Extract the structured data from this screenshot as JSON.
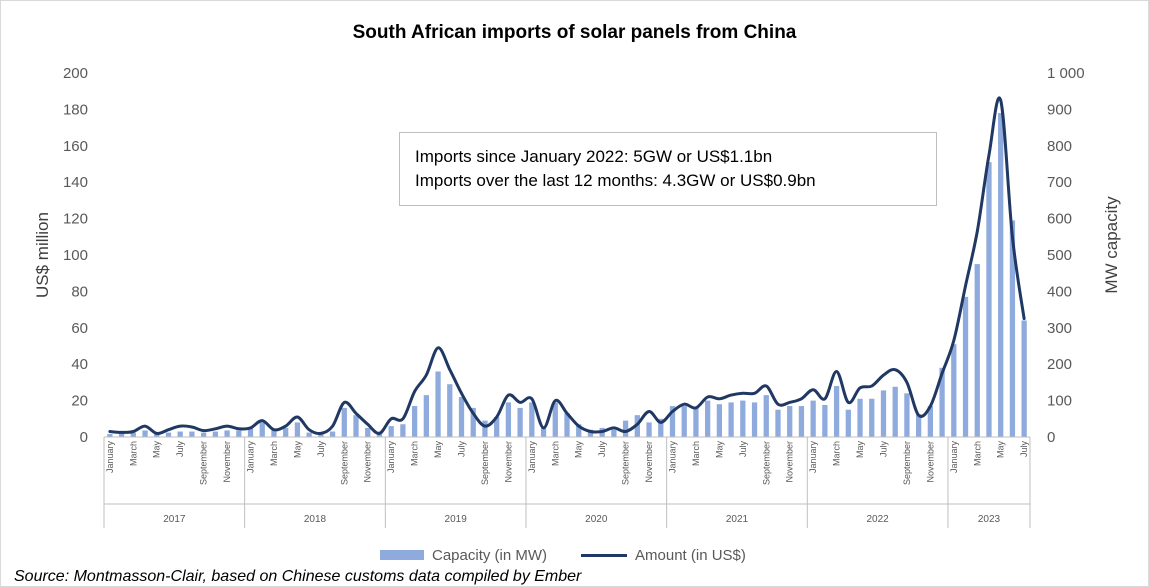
{
  "chart_data": {
    "type": "bar",
    "title": "South African imports of solar panels from China",
    "ylabel": "US$ million",
    "y2label": "MW capacity",
    "ylim": [
      0,
      200
    ],
    "y2lim": [
      0,
      1000
    ],
    "yticks": [
      "0",
      "20",
      "40",
      "60",
      "80",
      "100",
      "120",
      "140",
      "160",
      "180",
      "200"
    ],
    "y2ticks": [
      "0",
      "100",
      "200",
      "300",
      "400",
      "500",
      "600",
      "700",
      "800",
      "900",
      "1 000"
    ],
    "years": [
      {
        "label": "2017",
        "months": 12
      },
      {
        "label": "2018",
        "months": 12
      },
      {
        "label": "2019",
        "months": 12
      },
      {
        "label": "2020",
        "months": 12
      },
      {
        "label": "2021",
        "months": 12
      },
      {
        "label": "2022",
        "months": 12
      },
      {
        "label": "2023",
        "months": 7
      }
    ],
    "month_labels": [
      "January",
      "",
      "March",
      "",
      "May",
      "",
      "July",
      "",
      "September",
      "",
      "November",
      ""
    ],
    "series": [
      {
        "name": "Capacity (in MW)",
        "type": "bar",
        "axis": "right",
        "color": "#8faadc",
        "values": [
          8,
          10,
          12,
          18,
          10,
          12,
          15,
          15,
          12,
          15,
          18,
          18,
          25,
          40,
          20,
          25,
          40,
          12,
          8,
          15,
          80,
          60,
          25,
          15,
          30,
          35,
          85,
          115,
          180,
          145,
          110,
          80,
          45,
          55,
          95,
          80,
          95,
          25,
          95,
          65,
          35,
          20,
          25,
          20,
          45,
          60,
          40,
          50,
          85,
          85,
          80,
          100,
          90,
          95,
          100,
          95,
          115,
          75,
          85,
          85,
          100,
          88,
          140,
          75,
          105,
          105,
          128,
          138,
          120,
          62,
          85,
          190,
          255,
          385,
          475,
          755,
          890,
          595,
          320
        ]
      },
      {
        "name": "Amount (in US$)",
        "type": "line",
        "axis": "left",
        "color": "#203864",
        "values": [
          3,
          2.5,
          3,
          6,
          2,
          4,
          6,
          5.5,
          3.5,
          4.5,
          6,
          4.5,
          5,
          9,
          4,
          6,
          11,
          4,
          2,
          6,
          19,
          13,
          7,
          2,
          10,
          10,
          25,
          34,
          49,
          37,
          24,
          13,
          6,
          11,
          23,
          19,
          21,
          5,
          20,
          13,
          6,
          3,
          3,
          5,
          3,
          7,
          14,
          8,
          14,
          18,
          16,
          22,
          21,
          23,
          24,
          24,
          28,
          18,
          19,
          21,
          26,
          21,
          36,
          19,
          27,
          28,
          34,
          37,
          30,
          12,
          17,
          35,
          53,
          83,
          113,
          155,
          185,
          110,
          65
        ]
      }
    ],
    "annotation": [
      "Imports since January 2022: 5GW or US$1.1bn",
      "Imports over the last 12 months: 4.3GW or US$0.9bn"
    ],
    "legend_position": "bottom",
    "grid": false
  },
  "legend": {
    "bar_label": "Capacity (in MW)",
    "line_label": "Amount (in US$)"
  },
  "source": "Source: Montmasson-Clair, based on Chinese customs data compiled by Ember"
}
